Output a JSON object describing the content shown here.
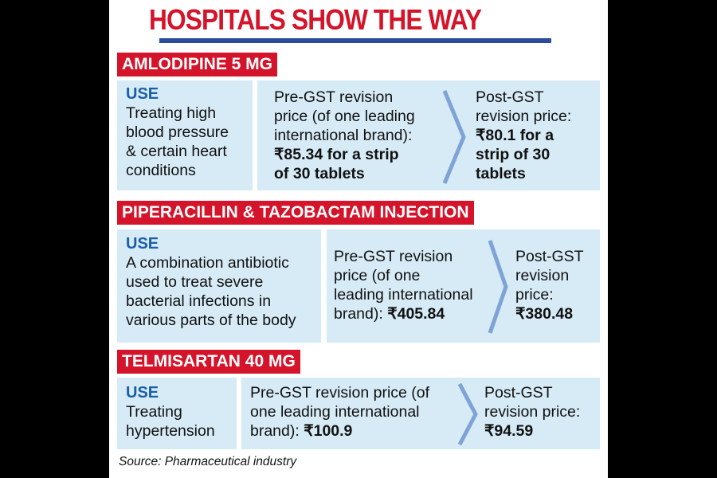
{
  "title": "HOSPITALS SHOW THE WAY",
  "colors": {
    "accent_red": "#d3142a",
    "box_blue": "#d6ebf6",
    "use_blue": "#1b5fa9",
    "rule_blue": "#2b4c9b"
  },
  "drugs": [
    {
      "name": "AMLODIPINE 5 MG",
      "use_heading": "USE",
      "use_lines": [
        "Treating high",
        "blood pressure",
        "& certain heart",
        "conditions"
      ],
      "pre_lines": [
        "Pre-GST revision",
        "price (of one leading",
        "international brand):"
      ],
      "pre_price_lines": [
        "₹85.34 for a strip",
        "of 30 tablets"
      ],
      "post_lines": [
        "Post-GST",
        "revision price:"
      ],
      "post_price_lines": [
        "₹80.1 for a",
        "strip of 30",
        "tablets"
      ]
    },
    {
      "name": "PIPERACILLIN & TAZOBACTAM INJECTION",
      "use_heading": "USE",
      "use_lines": [
        "A combination antibiotic",
        "used to treat severe",
        "bacterial infections in",
        "various parts of the body"
      ],
      "pre_lines": [
        "Pre-GST revision",
        "price (of one",
        "leading international"
      ],
      "pre_last_prefix": "brand): ",
      "pre_price": "₹405.84",
      "post_lines": [
        "Post-GST",
        "revision",
        "price:"
      ],
      "post_price": "₹380.48"
    },
    {
      "name": "TELMISARTAN 40 MG",
      "use_heading": "USE",
      "use_lines": [
        "Treating",
        "hypertension"
      ],
      "pre_lines": [
        "Pre-GST revision price (of",
        "one leading international"
      ],
      "pre_last_prefix": "brand): ",
      "pre_price": "₹100.9",
      "post_lines": [
        "Post-GST",
        "revision price:"
      ],
      "post_price": "₹94.59"
    }
  ],
  "source": "Source: Pharmaceutical industry",
  "icons": {
    "separator": "chevron-right-icon"
  }
}
